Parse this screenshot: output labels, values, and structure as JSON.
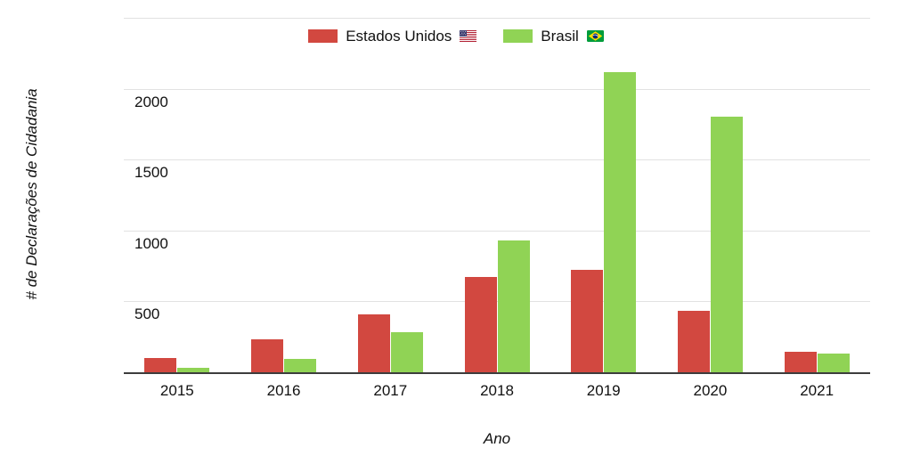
{
  "chart_data": {
    "type": "bar",
    "title": "",
    "xlabel": "Ano",
    "ylabel": "# de Declarações de Cidadania",
    "categories": [
      "2015",
      "2016",
      "2017",
      "2018",
      "2019",
      "2020",
      "2021"
    ],
    "series": [
      {
        "name": "Estados Unidos",
        "flag_icon": "us-flag-icon",
        "color": "#d24840",
        "values": [
          100,
          235,
          410,
          670,
          725,
          435,
          145
        ]
      },
      {
        "name": "Brasil",
        "flag_icon": "brazil-flag-icon",
        "color": "#90d355",
        "values": [
          30,
          95,
          280,
          930,
          2120,
          1805,
          130
        ]
      }
    ],
    "y_ticks": [
      500,
      1000,
      1500,
      2000
    ],
    "ylim": [
      0,
      2500
    ],
    "grid": true,
    "legend_position": "top"
  },
  "colors": {
    "background": "#ffffff",
    "gridline": "#e2e2e2",
    "axis_line": "#3d3d3d",
    "text": "#111111",
    "us_series": "#d24840",
    "brasil_series": "#90d355"
  }
}
